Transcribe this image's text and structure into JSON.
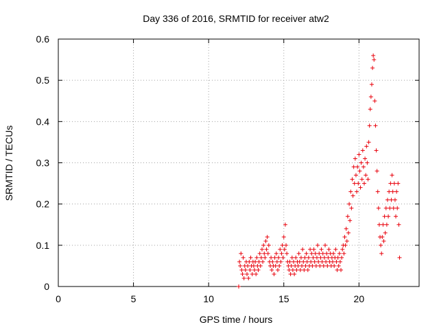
{
  "chart_data": {
    "type": "scatter",
    "title": "Day 336 of 2016, SRMTID for receiver atw2",
    "xlabel": "GPS time / hours",
    "ylabel": "SRMTID / TECUs",
    "xlim": [
      0,
      24
    ],
    "ylim": [
      0,
      0.6
    ],
    "xticks": [
      0,
      5,
      10,
      15,
      20
    ],
    "yticks": [
      0,
      0.1,
      0.2,
      0.3,
      0.4,
      0.5,
      0.6
    ],
    "grid": true,
    "marker": "plus",
    "series": [
      {
        "name": "SRMTID",
        "color": "#e8000b",
        "points": [
          [
            12.0,
            0.0
          ],
          [
            12.05,
            0.06
          ],
          [
            12.1,
            0.05
          ],
          [
            12.15,
            0.08
          ],
          [
            12.2,
            0.04
          ],
          [
            12.25,
            0.03
          ],
          [
            12.3,
            0.07
          ],
          [
            12.35,
            0.02
          ],
          [
            12.4,
            0.05
          ],
          [
            12.45,
            0.04
          ],
          [
            12.5,
            0.06
          ],
          [
            12.55,
            0.03
          ],
          [
            12.6,
            0.05
          ],
          [
            12.65,
            0.02
          ],
          [
            12.7,
            0.06
          ],
          [
            12.75,
            0.04
          ],
          [
            12.8,
            0.07
          ],
          [
            12.85,
            0.05
          ],
          [
            12.9,
            0.03
          ],
          [
            12.95,
            0.06
          ],
          [
            13.0,
            0.05
          ],
          [
            13.05,
            0.04
          ],
          [
            13.1,
            0.06
          ],
          [
            13.15,
            0.03
          ],
          [
            13.2,
            0.07
          ],
          [
            13.25,
            0.05
          ],
          [
            13.3,
            0.04
          ],
          [
            13.35,
            0.06
          ],
          [
            13.4,
            0.08
          ],
          [
            13.45,
            0.05
          ],
          [
            13.5,
            0.07
          ],
          [
            13.55,
            0.09
          ],
          [
            13.6,
            0.06
          ],
          [
            13.65,
            0.1
          ],
          [
            13.7,
            0.08
          ],
          [
            13.75,
            0.07
          ],
          [
            13.8,
            0.11
          ],
          [
            13.85,
            0.09
          ],
          [
            13.9,
            0.12
          ],
          [
            13.95,
            0.08
          ],
          [
            14.0,
            0.1
          ],
          [
            14.05,
            0.06
          ],
          [
            14.1,
            0.05
          ],
          [
            14.15,
            0.07
          ],
          [
            14.2,
            0.04
          ],
          [
            14.25,
            0.06
          ],
          [
            14.3,
            0.05
          ],
          [
            14.35,
            0.03
          ],
          [
            14.4,
            0.07
          ],
          [
            14.45,
            0.05
          ],
          [
            14.5,
            0.08
          ],
          [
            14.55,
            0.06
          ],
          [
            14.6,
            0.04
          ],
          [
            14.65,
            0.07
          ],
          [
            14.7,
            0.05
          ],
          [
            14.75,
            0.09
          ],
          [
            14.8,
            0.06
          ],
          [
            14.85,
            0.08
          ],
          [
            14.9,
            0.1
          ],
          [
            14.95,
            0.07
          ],
          [
            15.0,
            0.12
          ],
          [
            15.05,
            0.09
          ],
          [
            15.1,
            0.15
          ],
          [
            15.15,
            0.1
          ],
          [
            15.2,
            0.08
          ],
          [
            15.25,
            0.06
          ],
          [
            15.3,
            0.05
          ],
          [
            15.35,
            0.04
          ],
          [
            15.4,
            0.06
          ],
          [
            15.45,
            0.03
          ],
          [
            15.5,
            0.05
          ],
          [
            15.55,
            0.07
          ],
          [
            15.6,
            0.04
          ],
          [
            15.65,
            0.06
          ],
          [
            15.7,
            0.03
          ],
          [
            15.75,
            0.05
          ],
          [
            15.8,
            0.07
          ],
          [
            15.85,
            0.04
          ],
          [
            15.9,
            0.06
          ],
          [
            15.95,
            0.05
          ],
          [
            16.0,
            0.08
          ],
          [
            16.05,
            0.06
          ],
          [
            16.1,
            0.04
          ],
          [
            16.15,
            0.07
          ],
          [
            16.2,
            0.05
          ],
          [
            16.25,
            0.09
          ],
          [
            16.3,
            0.06
          ],
          [
            16.35,
            0.04
          ],
          [
            16.4,
            0.07
          ],
          [
            16.45,
            0.05
          ],
          [
            16.5,
            0.08
          ],
          [
            16.55,
            0.06
          ],
          [
            16.6,
            0.04
          ],
          [
            16.65,
            0.07
          ],
          [
            16.7,
            0.05
          ],
          [
            16.75,
            0.09
          ],
          [
            16.8,
            0.06
          ],
          [
            16.85,
            0.08
          ],
          [
            16.9,
            0.05
          ],
          [
            16.95,
            0.07
          ],
          [
            17.0,
            0.09
          ],
          [
            17.05,
            0.06
          ],
          [
            17.1,
            0.08
          ],
          [
            17.15,
            0.05
          ],
          [
            17.2,
            0.07
          ],
          [
            17.25,
            0.1
          ],
          [
            17.3,
            0.06
          ],
          [
            17.35,
            0.08
          ],
          [
            17.4,
            0.05
          ],
          [
            17.45,
            0.07
          ],
          [
            17.5,
            0.09
          ],
          [
            17.55,
            0.06
          ],
          [
            17.6,
            0.08
          ],
          [
            17.65,
            0.05
          ],
          [
            17.7,
            0.07
          ],
          [
            17.75,
            0.1
          ],
          [
            17.8,
            0.06
          ],
          [
            17.85,
            0.08
          ],
          [
            17.9,
            0.05
          ],
          [
            17.95,
            0.07
          ],
          [
            18.0,
            0.09
          ],
          [
            18.05,
            0.06
          ],
          [
            18.1,
            0.08
          ],
          [
            18.15,
            0.05
          ],
          [
            18.2,
            0.07
          ],
          [
            18.25,
            0.06
          ],
          [
            18.3,
            0.08
          ],
          [
            18.35,
            0.05
          ],
          [
            18.4,
            0.07
          ],
          [
            18.45,
            0.09
          ],
          [
            18.5,
            0.06
          ],
          [
            18.55,
            0.04
          ],
          [
            18.6,
            0.07
          ],
          [
            18.65,
            0.05
          ],
          [
            18.7,
            0.08
          ],
          [
            18.75,
            0.06
          ],
          [
            18.8,
            0.04
          ],
          [
            18.85,
            0.07
          ],
          [
            18.9,
            0.09
          ],
          [
            18.95,
            0.1
          ],
          [
            19.0,
            0.08
          ],
          [
            19.05,
            0.12
          ],
          [
            19.1,
            0.1
          ],
          [
            19.15,
            0.14
          ],
          [
            19.2,
            0.11
          ],
          [
            19.25,
            0.17
          ],
          [
            19.3,
            0.13
          ],
          [
            19.35,
            0.2
          ],
          [
            19.4,
            0.16
          ],
          [
            19.45,
            0.23
          ],
          [
            19.5,
            0.19
          ],
          [
            19.55,
            0.26
          ],
          [
            19.6,
            0.22
          ],
          [
            19.65,
            0.29
          ],
          [
            19.7,
            0.25
          ],
          [
            19.75,
            0.31
          ],
          [
            19.8,
            0.27
          ],
          [
            19.85,
            0.23
          ],
          [
            19.9,
            0.29
          ],
          [
            19.95,
            0.25
          ],
          [
            20.0,
            0.32
          ],
          [
            20.05,
            0.28
          ],
          [
            20.1,
            0.24
          ],
          [
            20.15,
            0.3
          ],
          [
            20.2,
            0.26
          ],
          [
            20.25,
            0.33
          ],
          [
            20.3,
            0.29
          ],
          [
            20.35,
            0.25
          ],
          [
            20.4,
            0.31
          ],
          [
            20.45,
            0.27
          ],
          [
            20.5,
            0.34
          ],
          [
            20.55,
            0.3
          ],
          [
            20.6,
            0.26
          ],
          [
            20.65,
            0.35
          ],
          [
            20.7,
            0.39
          ],
          [
            20.75,
            0.43
          ],
          [
            20.8,
            0.46
          ],
          [
            20.85,
            0.49
          ],
          [
            20.9,
            0.53
          ],
          [
            20.95,
            0.56
          ],
          [
            21.0,
            0.55
          ],
          [
            21.05,
            0.45
          ],
          [
            21.1,
            0.39
          ],
          [
            21.15,
            0.33
          ],
          [
            21.2,
            0.28
          ],
          [
            21.25,
            0.23
          ],
          [
            21.3,
            0.19
          ],
          [
            21.35,
            0.15
          ],
          [
            21.4,
            0.12
          ],
          [
            21.45,
            0.1
          ],
          [
            21.5,
            0.08
          ],
          [
            21.55,
            0.12
          ],
          [
            21.6,
            0.15
          ],
          [
            21.65,
            0.11
          ],
          [
            21.7,
            0.17
          ],
          [
            21.75,
            0.13
          ],
          [
            21.8,
            0.19
          ],
          [
            21.85,
            0.15
          ],
          [
            21.9,
            0.21
          ],
          [
            21.95,
            0.17
          ],
          [
            22.0,
            0.23
          ],
          [
            22.05,
            0.19
          ],
          [
            22.1,
            0.25
          ],
          [
            22.15,
            0.21
          ],
          [
            22.2,
            0.27
          ],
          [
            22.25,
            0.23
          ],
          [
            22.3,
            0.19
          ],
          [
            22.35,
            0.25
          ],
          [
            22.4,
            0.21
          ],
          [
            22.45,
            0.17
          ],
          [
            22.5,
            0.23
          ],
          [
            22.55,
            0.19
          ],
          [
            22.6,
            0.25
          ],
          [
            22.65,
            0.15
          ],
          [
            22.7,
            0.07
          ]
        ]
      }
    ]
  }
}
